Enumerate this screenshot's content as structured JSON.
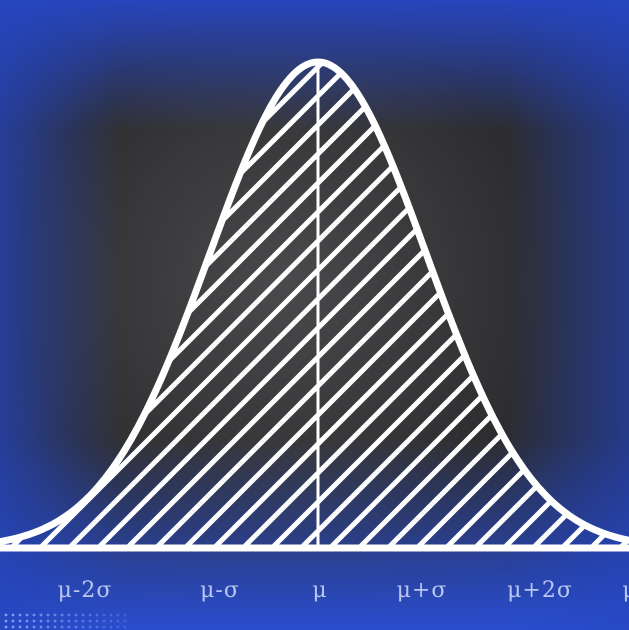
{
  "chart_data": {
    "type": "area",
    "title": "",
    "xlabel": "",
    "ylabel": "",
    "tick_labels": [
      "μ-2σ",
      "μ-σ",
      "μ",
      "μ+σ",
      "μ+2σ",
      "μ"
    ],
    "mean_line": true,
    "fill": "diagonal-hatch",
    "distribution": "normal"
  },
  "colors": {
    "background": "#2b2b2d",
    "accent_blue": "#2445b5",
    "curve": "#ffffff",
    "label": "#b8c6f0"
  }
}
